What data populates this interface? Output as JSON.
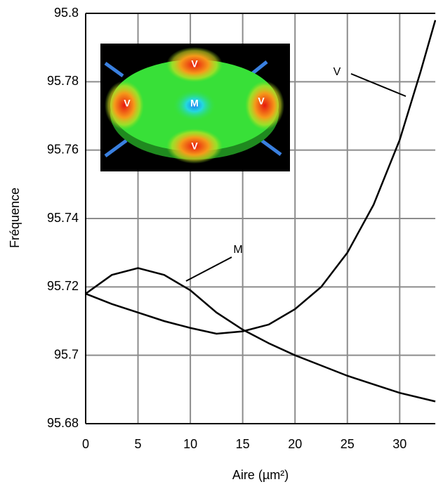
{
  "chart_data": {
    "type": "line",
    "xlabel": "Aire (µm²)",
    "ylabel": "Fréquence",
    "xlim": [
      0,
      33.4
    ],
    "ylim": [
      95.68,
      95.8
    ],
    "xticks": [
      0,
      5,
      10,
      15,
      20,
      25,
      30
    ],
    "yticks": [
      95.68,
      95.7,
      95.72,
      95.74,
      95.76,
      95.78,
      95.8
    ],
    "grid": true,
    "series": [
      {
        "name": "V",
        "color": "#000000",
        "x": [
          0,
          2.5,
          5,
          7.5,
          10,
          12.5,
          15,
          17.5,
          20,
          22.5,
          25,
          27.5,
          30,
          32,
          33.4
        ],
        "values": [
          95.718,
          95.715,
          95.7125,
          95.71,
          95.708,
          95.7063,
          95.707,
          95.709,
          95.7135,
          95.72,
          95.73,
          95.744,
          95.763,
          95.783,
          95.798
        ]
      },
      {
        "name": "M",
        "color": "#000000",
        "x": [
          0,
          2.5,
          5,
          7.5,
          10,
          12.5,
          15,
          17.5,
          20,
          22.5,
          25,
          27.5,
          30,
          33.4
        ],
        "values": [
          95.718,
          95.7235,
          95.7255,
          95.7235,
          95.719,
          95.7125,
          95.7075,
          95.7035,
          95.7,
          95.697,
          95.694,
          95.6915,
          95.689,
          95.6865
        ]
      }
    ],
    "inset_labels": [
      "V",
      "V",
      "M",
      "V",
      "V"
    ]
  }
}
